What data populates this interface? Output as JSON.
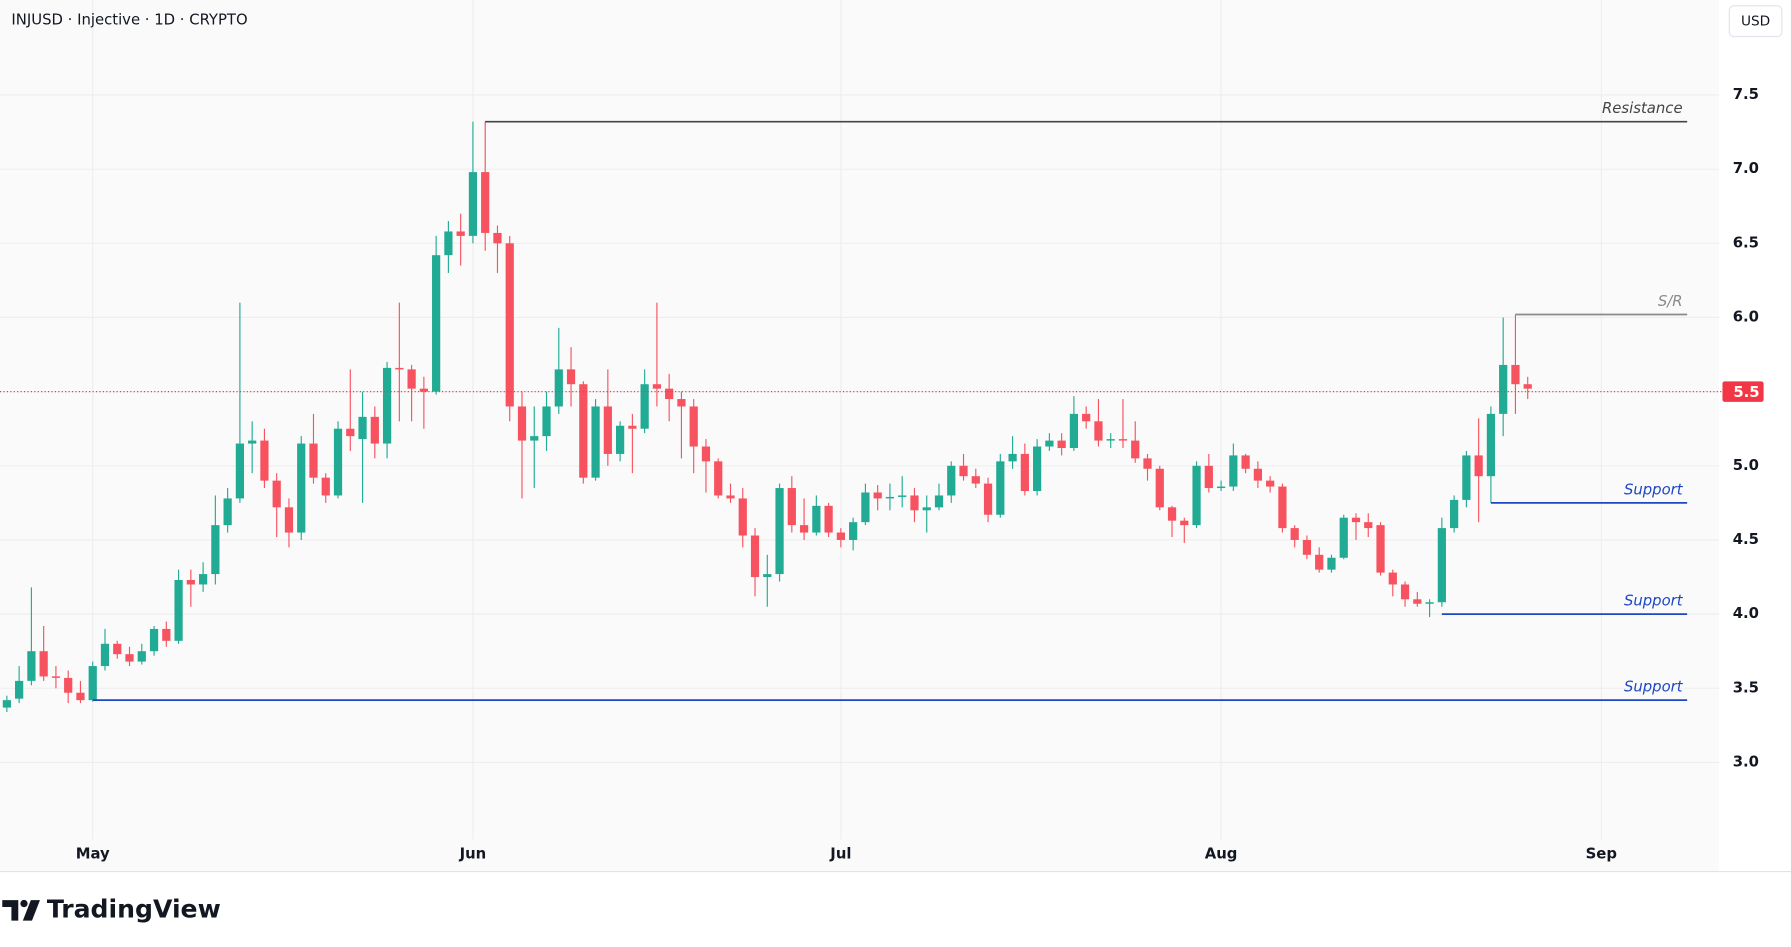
{
  "header": {
    "symbol": "INJUSD · Injective · 1D · CRYPTO",
    "currency": "USD"
  },
  "chart_data": {
    "type": "candlestick",
    "up_color": "#22ab94",
    "down_color": "#f7525f",
    "open": [
      3.37,
      3.43,
      3.55,
      3.75,
      3.58,
      3.57,
      3.47,
      3.42,
      3.65,
      3.8,
      3.73,
      3.68,
      3.75,
      3.9,
      3.82,
      4.23,
      4.2,
      4.27,
      4.6,
      4.78,
      5.15,
      5.17,
      4.9,
      4.72,
      4.55,
      5.15,
      4.92,
      4.8,
      5.25,
      5.18,
      5.33,
      5.15,
      5.66,
      5.65,
      5.52,
      5.5,
      6.42,
      6.58,
      6.55,
      6.98,
      6.57,
      6.5,
      5.4,
      5.17,
      5.2,
      5.4,
      5.65,
      5.55,
      4.92,
      5.4,
      5.08,
      5.27,
      5.25,
      5.55,
      5.52,
      5.45,
      5.4,
      5.13,
      5.03,
      4.8,
      4.78,
      4.53,
      4.25,
      4.27,
      4.85,
      4.6,
      4.55,
      4.73,
      4.55,
      4.5,
      4.62,
      4.82,
      4.78,
      4.79,
      4.8,
      4.7,
      4.72,
      4.8,
      5.0,
      4.93,
      4.88,
      4.67,
      5.03,
      5.08,
      4.83,
      5.13,
      5.17,
      5.12,
      5.35,
      5.3,
      5.17,
      5.18,
      5.17,
      5.05,
      4.98,
      4.72,
      4.63,
      4.6,
      5.0,
      4.85,
      4.86,
      5.07,
      4.98,
      4.9,
      4.86,
      4.58,
      4.5,
      4.4,
      4.3,
      4.38,
      4.65,
      4.62,
      4.6,
      4.28,
      4.2,
      4.1,
      4.07,
      4.08,
      4.58,
      4.77,
      5.07,
      4.93,
      5.35,
      5.68,
      5.55
    ],
    "high": [
      3.45,
      3.65,
      4.18,
      3.92,
      3.65,
      3.62,
      3.55,
      3.68,
      3.9,
      3.82,
      3.78,
      3.8,
      3.92,
      3.95,
      4.3,
      4.3,
      4.35,
      4.8,
      4.85,
      6.1,
      5.3,
      5.25,
      4.95,
      4.78,
      5.2,
      5.35,
      4.95,
      5.3,
      5.65,
      5.5,
      5.4,
      5.7,
      6.1,
      5.68,
      5.6,
      6.55,
      6.65,
      6.7,
      7.32,
      7.32,
      6.62,
      6.55,
      5.5,
      5.4,
      5.5,
      5.93,
      5.8,
      5.57,
      5.45,
      5.65,
      5.3,
      5.35,
      5.65,
      6.1,
      5.62,
      5.5,
      5.45,
      5.18,
      5.05,
      4.88,
      4.85,
      4.58,
      4.4,
      4.88,
      4.93,
      4.78,
      4.8,
      4.75,
      4.58,
      4.65,
      4.88,
      4.87,
      4.88,
      4.93,
      4.85,
      4.8,
      4.88,
      5.03,
      5.08,
      4.98,
      4.92,
      5.08,
      5.2,
      5.15,
      5.18,
      5.22,
      5.22,
      5.47,
      5.4,
      5.45,
      5.22,
      5.45,
      5.3,
      5.08,
      5.0,
      4.73,
      4.65,
      5.03,
      5.08,
      4.9,
      5.15,
      5.08,
      5.03,
      4.93,
      4.88,
      4.6,
      4.53,
      4.45,
      4.4,
      4.67,
      4.68,
      4.68,
      4.62,
      4.3,
      4.22,
      4.15,
      4.1,
      4.65,
      4.8,
      5.1,
      5.32,
      5.4,
      6.0,
      6.02,
      5.6
    ],
    "low": [
      3.34,
      3.4,
      3.52,
      3.55,
      3.5,
      3.4,
      3.4,
      3.41,
      3.62,
      3.7,
      3.65,
      3.66,
      3.72,
      3.78,
      3.8,
      4.05,
      4.15,
      4.2,
      4.55,
      4.75,
      4.95,
      4.85,
      4.52,
      4.45,
      4.5,
      4.88,
      4.75,
      4.78,
      5.1,
      4.75,
      5.05,
      5.05,
      5.3,
      5.3,
      5.25,
      5.48,
      6.3,
      6.35,
      6.5,
      6.45,
      6.3,
      5.3,
      4.78,
      4.85,
      5.1,
      5.35,
      5.4,
      4.88,
      4.9,
      5.0,
      5.03,
      4.95,
      5.22,
      5.4,
      5.3,
      5.05,
      4.95,
      4.82,
      4.78,
      4.75,
      4.45,
      4.12,
      4.05,
      4.22,
      4.55,
      4.5,
      4.53,
      4.52,
      4.45,
      4.43,
      4.6,
      4.7,
      4.7,
      4.72,
      4.62,
      4.55,
      4.7,
      4.75,
      4.9,
      4.85,
      4.62,
      4.65,
      4.98,
      4.8,
      4.8,
      5.1,
      5.07,
      5.1,
      5.25,
      5.13,
      5.12,
      5.12,
      5.02,
      4.9,
      4.7,
      4.52,
      4.48,
      4.58,
      4.82,
      4.83,
      4.83,
      4.95,
      4.85,
      4.82,
      4.55,
      4.45,
      4.37,
      4.28,
      4.28,
      4.37,
      4.5,
      4.52,
      4.26,
      4.12,
      4.05,
      4.05,
      3.98,
      4.05,
      4.55,
      4.72,
      4.62,
      4.75,
      5.2,
      5.35,
      5.45
    ],
    "close": [
      3.42,
      3.55,
      3.75,
      3.58,
      3.57,
      3.47,
      3.42,
      3.65,
      3.8,
      3.73,
      3.68,
      3.75,
      3.9,
      3.82,
      4.23,
      4.2,
      4.27,
      4.6,
      4.78,
      5.15,
      5.17,
      4.9,
      4.72,
      4.55,
      5.15,
      4.92,
      4.8,
      5.25,
      5.2,
      5.33,
      5.15,
      5.66,
      5.65,
      5.52,
      5.5,
      6.42,
      6.58,
      6.55,
      6.98,
      6.57,
      6.5,
      5.4,
      5.17,
      5.2,
      5.4,
      5.65,
      5.55,
      4.92,
      5.4,
      5.08,
      5.27,
      5.25,
      5.55,
      5.52,
      5.45,
      5.4,
      5.13,
      5.03,
      4.8,
      4.78,
      4.53,
      4.25,
      4.27,
      4.85,
      4.6,
      4.55,
      4.73,
      4.55,
      4.5,
      4.62,
      4.82,
      4.78,
      4.79,
      4.8,
      4.7,
      4.72,
      4.8,
      5.0,
      4.93,
      4.88,
      4.67,
      5.03,
      5.08,
      4.83,
      5.13,
      5.17,
      5.12,
      5.35,
      5.3,
      5.17,
      5.18,
      5.17,
      5.05,
      4.98,
      4.72,
      4.63,
      4.6,
      5.0,
      4.85,
      4.86,
      5.07,
      4.98,
      4.9,
      4.86,
      4.58,
      4.5,
      4.4,
      4.3,
      4.38,
      4.65,
      4.62,
      4.58,
      4.28,
      4.2,
      4.1,
      4.07,
      4.08,
      4.58,
      4.77,
      5.07,
      4.93,
      5.35,
      5.68,
      5.55,
      5.52
    ],
    "xlim": [
      -0.56,
      139.6
    ],
    "xticks": [
      {
        "value": 7,
        "label": "May"
      },
      {
        "value": 38,
        "label": "Jun"
      },
      {
        "value": 68,
        "label": "Jul"
      },
      {
        "value": 99,
        "label": "Aug"
      },
      {
        "value": 130,
        "label": "Sep"
      }
    ],
    "ylim": [
      2.48,
      8.14
    ],
    "yticks": [
      {
        "value": 3.0,
        "label": "3.0"
      },
      3.5,
      {
        "value": 4.0,
        "label": "4.0"
      },
      4.5,
      {
        "value": 5.0,
        "label": "5.0"
      },
      5.5,
      {
        "value": 6.0,
        "label": "6.0"
      },
      6.5,
      {
        "value": 7.0,
        "label": "7.0"
      },
      7.5
    ],
    "grid": true,
    "last_price": 5.5,
    "last_price_color": "#f23645",
    "levels": [
      {
        "label": "Resistance",
        "value": 7.32,
        "from": 39,
        "to": 137,
        "color": "#444444"
      },
      {
        "label": "S/R",
        "value": 6.02,
        "from": 123,
        "to": 137,
        "color": "#8a8a8a"
      },
      {
        "label": "Support",
        "value": 4.75,
        "from": 121,
        "to": 137,
        "color": "#1e47c4"
      },
      {
        "label": "Support",
        "value": 4.0,
        "from": 117,
        "to": 137,
        "color": "#1e47c4"
      },
      {
        "label": "Support",
        "value": 3.42,
        "from": 7,
        "to": 137,
        "color": "#1e47c4"
      }
    ]
  },
  "footer": {
    "brand": "TradingView"
  }
}
